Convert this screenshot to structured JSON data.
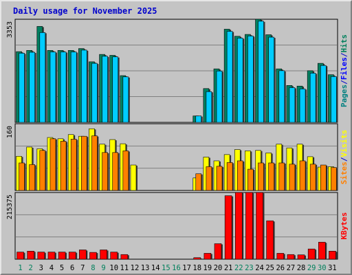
{
  "chart_data": {
    "type": "bar",
    "title": "Daily usage for November 2025",
    "categories": [
      "1",
      "2",
      "3",
      "4",
      "5",
      "6",
      "7",
      "8",
      "9",
      "10",
      "11",
      "12",
      "13",
      "14",
      "15",
      "16",
      "17",
      "18",
      "19",
      "20",
      "21",
      "22",
      "23",
      "24",
      "25",
      "26",
      "27",
      "28",
      "29",
      "30",
      "31"
    ],
    "weekend_days": [
      "1",
      "2",
      "8",
      "9",
      "15",
      "16",
      "22",
      "23",
      "29",
      "30"
    ],
    "colors": {
      "title": "#0000cc",
      "pages": "#008080",
      "files": "#0000ff",
      "hits": "#00805c",
      "visits": "#ffff00",
      "sites": "#ff8000",
      "kbytes": "#ff0000",
      "day_weekday": "#000000",
      "day_weekend": "#00805c",
      "grid": "#808080",
      "plot_bg": "#c4c4c4"
    },
    "panels": [
      {
        "id": "hits-files-pages",
        "ymax_label": "3353",
        "ylim": [
          0,
          3353
        ],
        "legend_parts": [
          {
            "text": "Pages",
            "color_key": "pages"
          },
          {
            "text": "/",
            "color_key": "title"
          },
          {
            "text": "Files",
            "color_key": "files"
          },
          {
            "text": "/",
            "color_key": "title"
          },
          {
            "text": "Hits",
            "color_key": "hits"
          }
        ],
        "series": [
          {
            "name": "Hits",
            "color": "#008060",
            "values": [
              2300,
              2340,
              3120,
              2340,
              2340,
              2340,
              2400,
              1970,
              2210,
              2180,
              1520,
              0,
              0,
              0,
              0,
              0,
              0,
              210,
              1100,
              1740,
              3030,
              2800,
              2860,
              3353,
              2850,
              1740,
              1200,
              1180,
              1680,
              1920,
              1550
            ]
          },
          {
            "name": "Files",
            "color": "#00ccff",
            "values": [
              2250,
              2280,
              2920,
              2290,
              2290,
              2290,
              2350,
              1920,
              2150,
              2130,
              1480,
              0,
              0,
              0,
              0,
              0,
              0,
              210,
              1000,
              1670,
              2960,
              2740,
              2810,
              3290,
              2770,
              1680,
              1130,
              1090,
              1600,
              1850,
              1490
            ]
          }
        ]
      },
      {
        "id": "visits-sites",
        "ymax_label": "160",
        "ylim": [
          0,
          160
        ],
        "legend_parts": [
          {
            "text": "Sites",
            "color_key": "sites"
          },
          {
            "text": "/",
            "color_key": "title"
          },
          {
            "text": "Visits",
            "color_key": "visits"
          }
        ],
        "series": [
          {
            "name": "Visits",
            "color": "#ffff00",
            "values": [
              82,
              104,
              100,
              127,
              124,
              134,
              130,
              148,
              111,
              122,
              112,
              61,
              0,
              0,
              0,
              0,
              0,
              30,
              80,
              71,
              86,
              98,
              95,
              96,
              90,
              111,
              102,
              111,
              81,
              56,
              57
            ]
          },
          {
            "name": "Sites",
            "color": "#ff8000",
            "values": [
              66,
              62,
              96,
              124,
              118,
              123,
              130,
              131,
              91,
              91,
              95,
              0,
              0,
              0,
              0,
              0,
              0,
              40,
              57,
              58,
              67,
              71,
              51,
              66,
              66,
              66,
              63,
              71,
              63,
              61,
              55
            ]
          }
        ]
      },
      {
        "id": "kbytes",
        "ymax_label": "215375",
        "ylim": [
          0,
          215375
        ],
        "legend_parts": [
          {
            "text": "KBytes",
            "color_key": "kbytes"
          }
        ],
        "series": [
          {
            "name": "KBytes",
            "color": "#ff0000",
            "values": [
              23000,
              26000,
              23000,
              23000,
              23000,
              23000,
              30000,
              22000,
              30000,
              23000,
              15000,
              0,
              0,
              0,
              0,
              0,
              0,
              5000,
              19000,
              50000,
              205000,
              215375,
              215375,
              215375,
              124000,
              19000,
              15000,
              14000,
              33000,
              55000,
              26000
            ]
          }
        ]
      }
    ]
  }
}
